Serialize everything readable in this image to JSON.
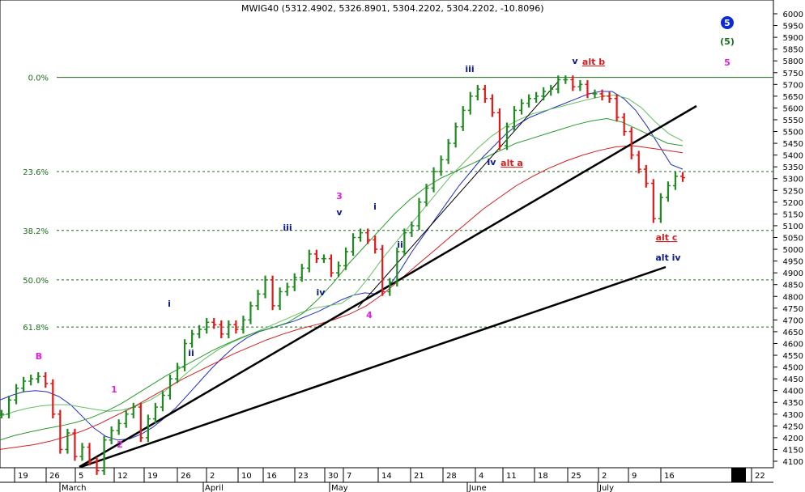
{
  "chart_data": {
    "type": "candlestick",
    "title": "MWIG40 (5312.4902, 5326.8901, 5304.2202, 5304.2202, -10.8096)",
    "ylim": [
      4080,
      6050
    ],
    "y_ticks": [
      4100,
      4150,
      4200,
      4250,
      4300,
      4350,
      4400,
      4450,
      4500,
      4550,
      4600,
      4650,
      4700,
      4750,
      4800,
      4850,
      4900,
      4950,
      5000,
      5050,
      5100,
      5150,
      5200,
      5250,
      5300,
      5350,
      5400,
      5450,
      5500,
      5550,
      5600,
      5650,
      5700,
      5750,
      5800,
      5850,
      5900,
      5950,
      6000
    ],
    "x_day_ticks": [
      "19",
      "26",
      "5",
      "12",
      "19",
      "26",
      "2",
      "10",
      "16",
      "23",
      "30",
      "7",
      "14",
      "21",
      "28",
      "4",
      "11",
      "18",
      "25",
      "2",
      "9",
      "16",
      "22"
    ],
    "x_month_labels": [
      "March",
      "April",
      "May",
      "June",
      "July"
    ],
    "series": [
      {
        "name": "price",
        "values": [
          4300,
          4360,
          4410,
          4440,
          4450,
          4460,
          4430,
          4300,
          4150,
          4220,
          4120,
          4160,
          4100,
          4060,
          4190,
          4230,
          4260,
          4300,
          4330,
          4200,
          4280,
          4330,
          4380,
          4450,
          4500,
          4600,
          4640,
          4660,
          4690,
          4680,
          4640,
          4680,
          4660,
          4700,
          4760,
          4810,
          4870,
          4760,
          4820,
          4840,
          4880,
          4920,
          4980,
          4960,
          4960,
          4900,
          4930,
          4990,
          5050,
          5070,
          5040,
          5000,
          4820,
          4860,
          4990,
          5070,
          5100,
          5200,
          5260,
          5330,
          5380,
          5450,
          5520,
          5590,
          5650,
          5680,
          5640,
          5580,
          5440,
          5520,
          5590,
          5620,
          5640,
          5650,
          5670,
          5680,
          5720,
          5720,
          5690,
          5700,
          5660,
          5660,
          5650,
          5640,
          5560,
          5500,
          5400,
          5340,
          5280,
          5130,
          5220,
          5270,
          5310,
          5304
        ]
      },
      {
        "name": "ma_blue",
        "values": [
          4360,
          4380,
          4395,
          4400,
          4395,
          4375,
          4340,
          4290,
          4240,
          4205,
          4190,
          4195,
          4215,
          4245,
          4285,
          4330,
          4385,
          4440,
          4495,
          4545,
          4590,
          4625,
          4650,
          4665,
          4680,
          4695,
          4715,
          4735,
          4760,
          4785,
          4805,
          4815,
          4810,
          4840,
          4910,
          4990,
          5060,
          5130,
          5200,
          5270,
          5330,
          5390,
          5440,
          5490,
          5530,
          5560,
          5580,
          5600,
          5620,
          5640,
          5660,
          5670,
          5670,
          5640,
          5590,
          5520,
          5440,
          5360,
          5340
        ]
      },
      {
        "name": "ma_green_light",
        "values": [
          4290,
          4310,
          4325,
          4335,
          4340,
          4340,
          4330,
          4320,
          4312,
          4318,
          4335,
          4360,
          4395,
          4440,
          4490,
          4535,
          4575,
          4605,
          4630,
          4655,
          4680,
          4705,
          4730,
          4750,
          4760,
          4770,
          4810,
          4880,
          4960,
          5030,
          5100,
          5170,
          5240,
          5310,
          5370,
          5430,
          5480,
          5520,
          5550,
          5575,
          5590,
          5605,
          5620,
          5635,
          5648,
          5655,
          5640,
          5600,
          5540,
          5490,
          5460
        ]
      },
      {
        "name": "ma_green",
        "values": [
          4190,
          4210,
          4225,
          4238,
          4250,
          4265,
          4285,
          4312,
          4345,
          4385,
          4425,
          4465,
          4500,
          4535,
          4570,
          4600,
          4628,
          4650,
          4668,
          4690,
          4730,
          4790,
          4860,
          4940,
          5010,
          5080,
          5150,
          5210,
          5260,
          5300,
          5330,
          5360,
          5390,
          5420,
          5450,
          5470,
          5490,
          5510,
          5530,
          5545,
          5555,
          5540,
          5510,
          5480,
          5450,
          5440
        ]
      },
      {
        "name": "ma_red",
        "values": [
          4150,
          4160,
          4170,
          4185,
          4205,
          4230,
          4260,
          4295,
          4330,
          4370,
          4410,
          4450,
          4485,
          4520,
          4555,
          4585,
          4615,
          4640,
          4662,
          4680,
          4700,
          4725,
          4760,
          4810,
          4870,
          4930,
          4990,
          5050,
          5110,
          5170,
          5220,
          5270,
          5310,
          5345,
          5375,
          5400,
          5420,
          5435,
          5440,
          5430,
          5420,
          5410
        ]
      }
    ],
    "fib_levels": [
      {
        "label": "0.0%",
        "value": 5730
      },
      {
        "label": "23.6%",
        "value": 5330
      },
      {
        "label": "38.2%",
        "value": 5080
      },
      {
        "label": "50.0%",
        "value": 4870
      },
      {
        "label": "61.8%",
        "value": 4670
      }
    ],
    "wave_labels": [
      {
        "text": "B",
        "color": "#e020e0"
      },
      {
        "text": "1",
        "color": "#e020e0"
      },
      {
        "text": "2",
        "color": "#e020e0"
      },
      {
        "text": "i",
        "color": "#0a1a8a"
      },
      {
        "text": "ii",
        "color": "#0a1a8a"
      },
      {
        "text": "iii",
        "color": "#0a1a8a"
      },
      {
        "text": "iv",
        "color": "#0a1a8a"
      },
      {
        "text": "3",
        "color": "#e020e0"
      },
      {
        "text": "v",
        "color": "#0a1a8a"
      },
      {
        "text": "i",
        "color": "#0a1a8a"
      },
      {
        "text": "ii",
        "color": "#0a1a8a"
      },
      {
        "text": "4",
        "color": "#e020e0"
      },
      {
        "text": "iii",
        "color": "#0a1a8a"
      },
      {
        "text": "iv",
        "color": "#0a1a8a"
      },
      {
        "text": "alt a",
        "color": "#d42020"
      },
      {
        "text": "v",
        "color": "#0a1a8a"
      },
      {
        "text": "alt b",
        "color": "#d42020"
      },
      {
        "text": "alt c",
        "color": "#d42020"
      },
      {
        "text": "alt iv",
        "color": "#0a1a8a"
      },
      {
        "text": "(5)",
        "color": "#1a6e1a"
      },
      {
        "text": "5",
        "color": "#e020e0"
      },
      {
        "text": "5",
        "color": "#ffffff"
      }
    ],
    "colors": {
      "up": "#1f8a1f",
      "down": "#e01818",
      "ma_blue": "#2030c0",
      "ma_green_light": "#60c060",
      "ma_green": "#2a9a2a",
      "ma_red": "#d02020",
      "fib": "#1a6e1a",
      "trend": "#000000"
    }
  }
}
